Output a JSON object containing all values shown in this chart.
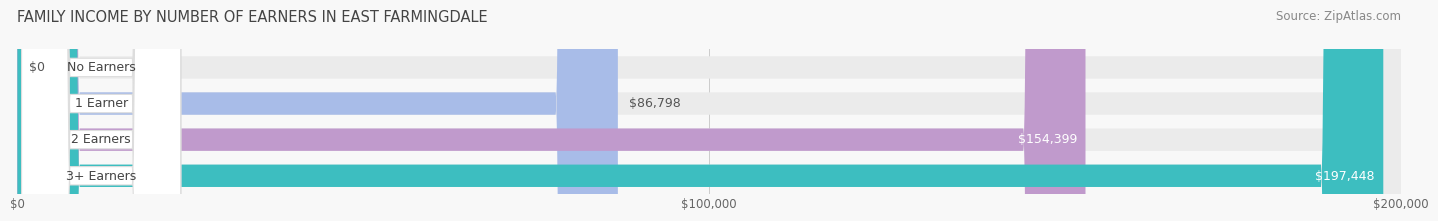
{
  "title": "FAMILY INCOME BY NUMBER OF EARNERS IN EAST FARMINGDALE",
  "source": "Source: ZipAtlas.com",
  "categories": [
    "No Earners",
    "1 Earner",
    "2 Earners",
    "3+ Earners"
  ],
  "values": [
    0,
    86798,
    154399,
    197448
  ],
  "value_labels": [
    "$0",
    "$86,798",
    "$154,399",
    "$197,448"
  ],
  "bar_colors": [
    "#f2a0a2",
    "#a8bce8",
    "#c09acc",
    "#3dbec0"
  ],
  "bar_bg_color": "#ebebeb",
  "xlim": [
    0,
    200000
  ],
  "xtick_values": [
    0,
    100000,
    200000
  ],
  "xtick_labels": [
    "$0",
    "$100,000",
    "$200,000"
  ],
  "background_color": "#f8f8f8",
  "title_fontsize": 10.5,
  "source_fontsize": 8.5,
  "bar_height": 0.62,
  "category_fontsize": 9,
  "value_fontsize": 9,
  "title_color": "#444444",
  "source_color": "#888888",
  "grid_color": "#cccccc",
  "pill_bg_color": "#ffffff",
  "pill_edge_color": "#dddddd"
}
